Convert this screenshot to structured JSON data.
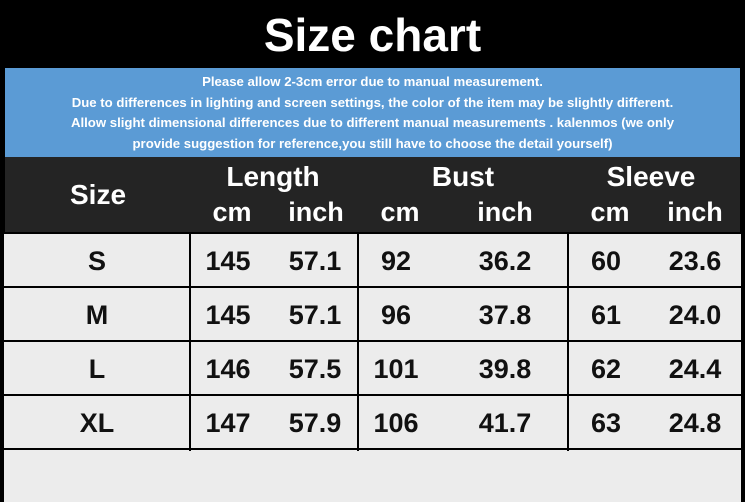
{
  "title": "Size chart",
  "notice": [
    "Please allow 2-3cm error due to manual measurement.",
    "Due to differences in lighting and screen settings, the color of the item may be slightly different.",
    "Allow slight dimensional differences due to different manual measurements . kalenmos (we only",
    "provide suggestion for reference,you still have to choose the detail yourself)"
  ],
  "colors": {
    "title_bg": "#000000",
    "notice_bg": "#5b9bd5",
    "header_bg": "#242424",
    "row_bg": "#ececec"
  },
  "header": {
    "size": "Size",
    "groups": [
      "Length",
      "Bust",
      "Sleeve"
    ],
    "units": [
      "cm",
      "inch",
      "cm",
      "inch",
      "cm",
      "inch"
    ]
  },
  "rows": [
    {
      "size": "S",
      "values": [
        "145",
        "57.1",
        "92",
        "36.2",
        "60",
        "23.6"
      ]
    },
    {
      "size": "M",
      "values": [
        "145",
        "57.1",
        "96",
        "37.8",
        "61",
        "24.0"
      ]
    },
    {
      "size": "L",
      "values": [
        "146",
        "57.5",
        "101",
        "39.8",
        "62",
        "24.4"
      ]
    },
    {
      "size": "XL",
      "values": [
        "147",
        "57.9",
        "106",
        "41.7",
        "63",
        "24.8"
      ]
    }
  ]
}
